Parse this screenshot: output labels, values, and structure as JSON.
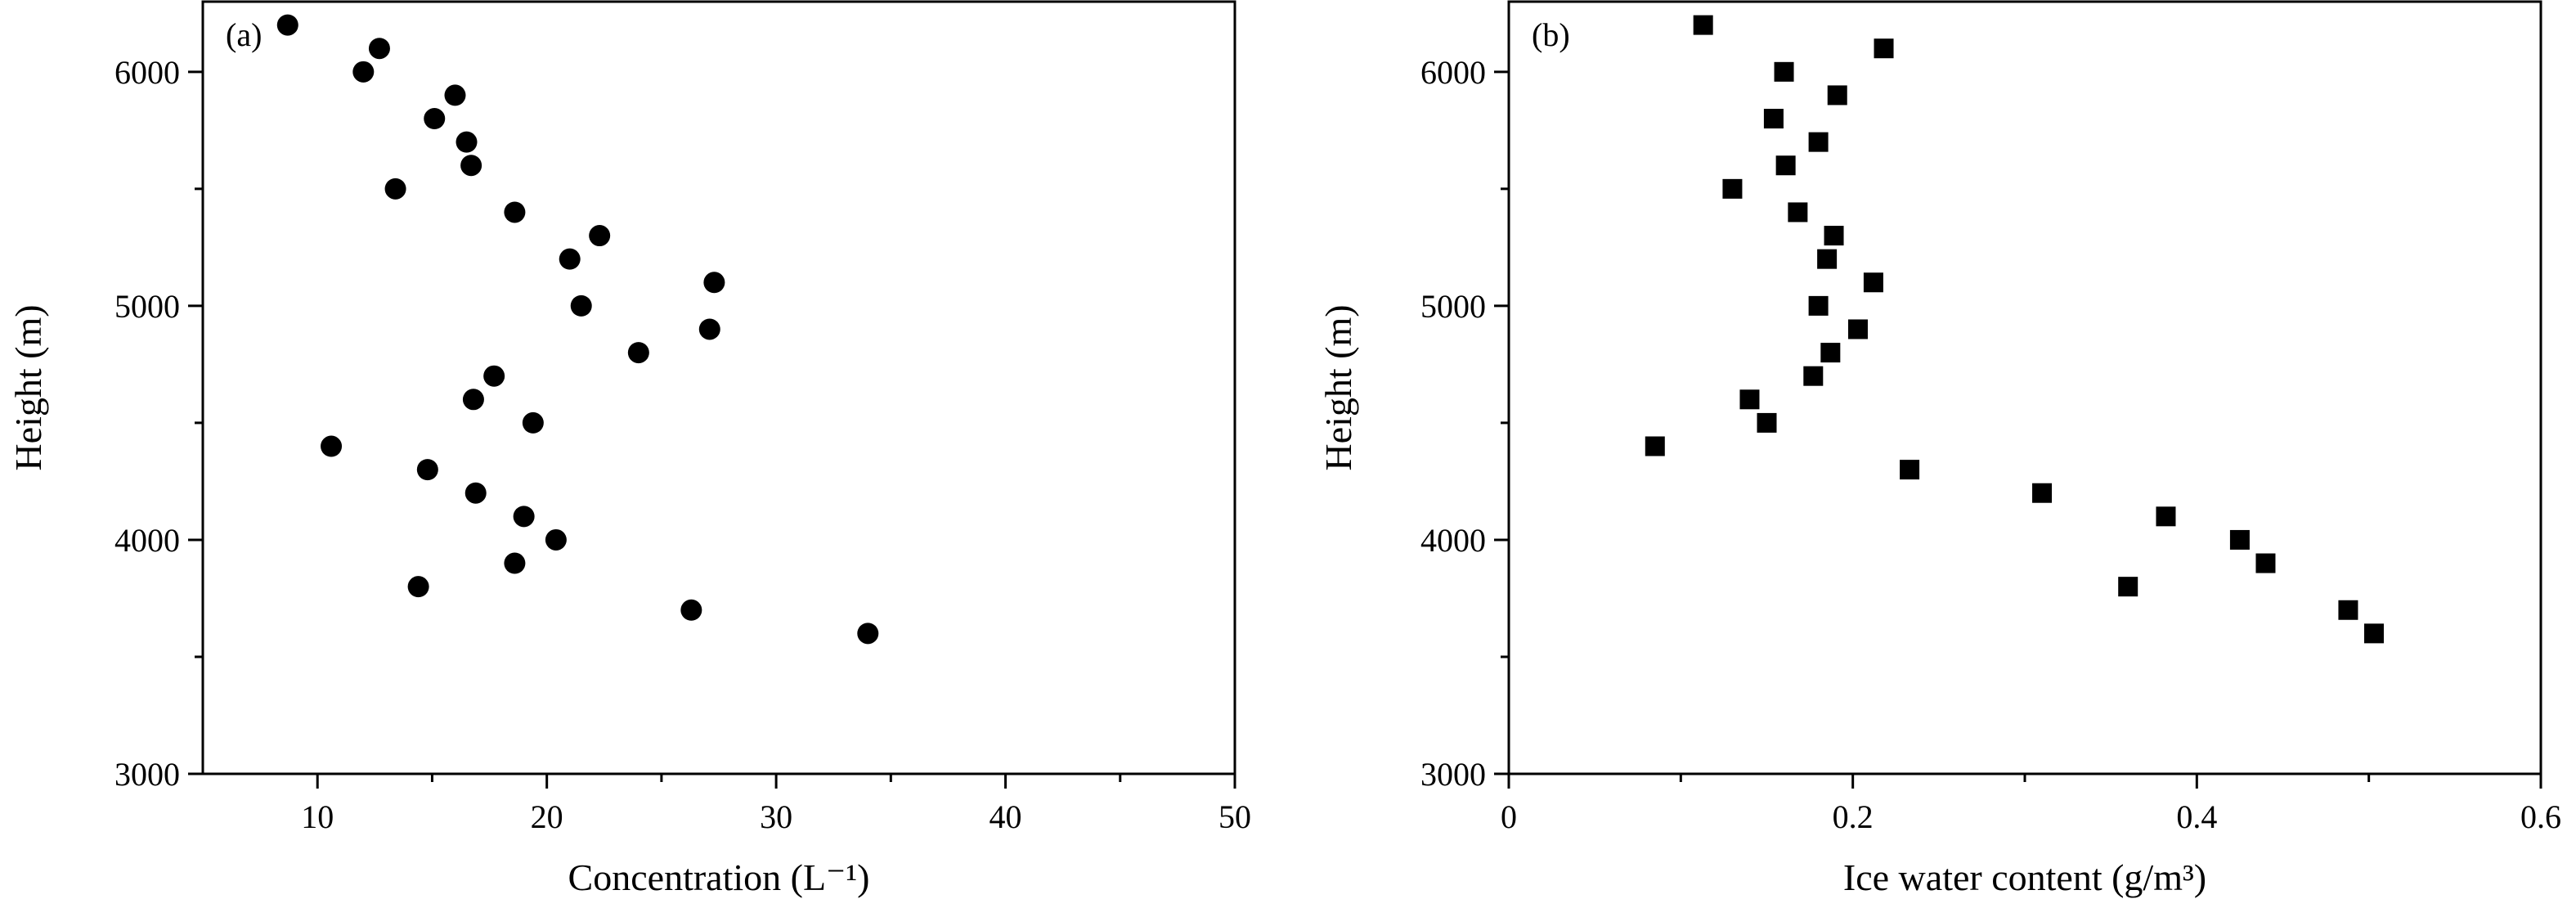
{
  "chart_data": [
    {
      "type": "scatter",
      "panel_label": "(a)",
      "xlabel": "Concentration (L⁻¹)",
      "ylabel": "Height (m)",
      "xlim": [
        5,
        50
      ],
      "ylim": [
        3000,
        6300
      ],
      "xticks": [
        10,
        20,
        30,
        40,
        50
      ],
      "yticks": [
        3000,
        4000,
        5000,
        6000
      ],
      "marker": "circle",
      "color": "#000000",
      "grid": false,
      "x": [
        8.7,
        12.0,
        12.7,
        16.0,
        15.1,
        16.5,
        16.7,
        13.4,
        18.6,
        22.3,
        21.0,
        27.3,
        21.5,
        27.1,
        24.0,
        17.7,
        16.8,
        19.4,
        10.6,
        14.8,
        16.9,
        19.0,
        20.4,
        18.6,
        14.4,
        26.3,
        34.0
      ],
      "y": [
        6200,
        6000,
        6100,
        5900,
        5800,
        5700,
        5600,
        5500,
        5400,
        5300,
        5200,
        5100,
        5000,
        4900,
        4800,
        4700,
        4600,
        4500,
        4400,
        4300,
        4200,
        4100,
        4000,
        3900,
        3800,
        3700,
        3600
      ]
    },
    {
      "type": "scatter",
      "panel_label": "(b)",
      "xlabel": "Ice water content (g/m³)",
      "ylabel": "Height (m)",
      "xlim": [
        0,
        0.6
      ],
      "ylim": [
        3000,
        6300
      ],
      "xticks": [
        0,
        0.2,
        0.4,
        0.6
      ],
      "xtick_labels": [
        "0",
        "0.2",
        "0.4",
        "0.6"
      ],
      "yticks": [
        3000,
        4000,
        5000,
        6000
      ],
      "marker": "square",
      "color": "#000000",
      "grid": false,
      "x": [
        0.113,
        0.218,
        0.16,
        0.191,
        0.154,
        0.18,
        0.161,
        0.13,
        0.168,
        0.189,
        0.185,
        0.212,
        0.18,
        0.203,
        0.187,
        0.177,
        0.14,
        0.15,
        0.085,
        0.233,
        0.31,
        0.382,
        0.425,
        0.44,
        0.36,
        0.488,
        0.503
      ],
      "y": [
        6200,
        6100,
        6000,
        5900,
        5800,
        5700,
        5600,
        5500,
        5400,
        5300,
        5200,
        5100,
        5000,
        4900,
        4800,
        4700,
        4600,
        4500,
        4400,
        4300,
        4200,
        4100,
        4000,
        3900,
        3800,
        3700,
        3600
      ]
    }
  ]
}
